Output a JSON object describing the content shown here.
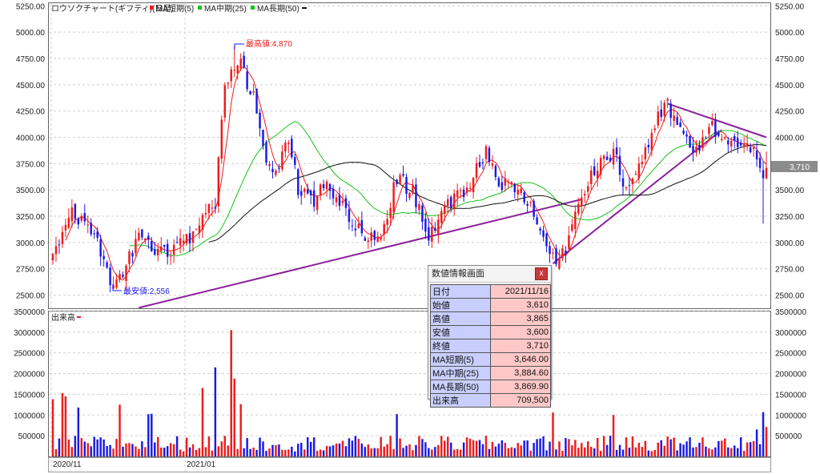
{
  "header": {
    "title": "ロウソクチャート(ギフティ)(日足)",
    "ma_short_label": "MA短期(5)",
    "ma_mid_label": "MA中期(25)",
    "ma_long_label": "MA長期(50)"
  },
  "colors": {
    "up": "#ee1c1c",
    "down": "#1a1ae6",
    "ma_short": "#ee1c1c",
    "ma_mid": "#18c418",
    "ma_long": "#111111",
    "trendline": "#8a1f9a",
    "price_tag_bg": "#888888"
  },
  "annotations": {
    "max_label": "最高値:4,870",
    "min_label": "最安値:2,556",
    "last_price": "3,710"
  },
  "volume_panel": {
    "label": "出来高"
  },
  "x_labels": [
    "2020/11",
    "2021/01"
  ],
  "info_window": {
    "title": "数値情報画面",
    "close_label": "x",
    "rows": [
      {
        "key": "日付",
        "value": "2021/11/16"
      },
      {
        "key": "始値",
        "value": "3,610"
      },
      {
        "key": "高値",
        "value": "3,865"
      },
      {
        "key": "安値",
        "value": "3,600"
      },
      {
        "key": "終値",
        "value": "3,710"
      },
      {
        "key": "MA短期(5)",
        "value": "3,646.00"
      },
      {
        "key": "MA中期(25)",
        "value": "3,884.60"
      },
      {
        "key": "MA長期(50)",
        "value": "3,869.90"
      },
      {
        "key": "出来高",
        "value": "709,500"
      }
    ]
  },
  "chart_data": {
    "type": "candlestick",
    "title": "ロウソクチャート(ギフティ)(日足)",
    "price_axis": {
      "ylim": [
        2375,
        5275
      ],
      "ticks": [
        2500,
        2750,
        3000,
        3250,
        3500,
        3750,
        4000,
        4250,
        4500,
        4750,
        5000,
        5250
      ],
      "tick_labels": [
        "2500.00",
        "2750.00",
        "3000.00",
        "3250.00",
        "3500.00",
        "3750.00",
        "4000.00",
        "4250.00",
        "4500.00",
        "4750.00",
        "5000.00",
        "5250.00"
      ]
    },
    "volume_axis": {
      "ylim": [
        0,
        3500000
      ],
      "ticks": [
        500000,
        1000000,
        1500000,
        2000000,
        2500000,
        3000000,
        3500000
      ],
      "tick_labels": [
        "500000",
        "1000000",
        "1500000",
        "2000000",
        "2500000",
        "3000000",
        "3500000"
      ]
    },
    "anchors": [
      {
        "i": 0,
        "close": 2880
      },
      {
        "i": 5,
        "close": 3280
      },
      {
        "i": 12,
        "close": 3150
      },
      {
        "i": 18,
        "close": 2640
      },
      {
        "i": 22,
        "close": 2700
      },
      {
        "i": 27,
        "close": 3100
      },
      {
        "i": 30,
        "close": 3000
      },
      {
        "i": 36,
        "close": 2870
      },
      {
        "i": 42,
        "close": 3020
      },
      {
        "i": 47,
        "close": 3250
      },
      {
        "i": 51,
        "close": 3380
      },
      {
        "i": 54,
        "close": 4450
      },
      {
        "i": 58,
        "close": 4750
      },
      {
        "i": 63,
        "close": 4380
      },
      {
        "i": 66,
        "close": 3880
      },
      {
        "i": 70,
        "close": 3650
      },
      {
        "i": 74,
        "close": 4000
      },
      {
        "i": 77,
        "close": 3520
      },
      {
        "i": 81,
        "close": 3380
      },
      {
        "i": 86,
        "close": 3550
      },
      {
        "i": 92,
        "close": 3300
      },
      {
        "i": 97,
        "close": 3100
      },
      {
        "i": 103,
        "close": 3020
      },
      {
        "i": 108,
        "close": 3620
      },
      {
        "i": 113,
        "close": 3480
      },
      {
        "i": 118,
        "close": 3080
      },
      {
        "i": 125,
        "close": 3380
      },
      {
        "i": 130,
        "close": 3520
      },
      {
        "i": 136,
        "close": 3880
      },
      {
        "i": 140,
        "close": 3560
      },
      {
        "i": 146,
        "close": 3550
      },
      {
        "i": 151,
        "close": 3250
      },
      {
        "i": 157,
        "close": 2830
      },
      {
        "i": 161,
        "close": 2960
      },
      {
        "i": 166,
        "close": 3480
      },
      {
        "i": 171,
        "close": 3750
      },
      {
        "i": 176,
        "close": 3850
      },
      {
        "i": 180,
        "close": 3500
      },
      {
        "i": 185,
        "close": 3800
      },
      {
        "i": 190,
        "close": 4180
      },
      {
        "i": 193,
        "close": 4300
      },
      {
        "i": 197,
        "close": 4050
      },
      {
        "i": 202,
        "close": 3850
      },
      {
        "i": 207,
        "close": 4100
      },
      {
        "i": 212,
        "close": 3950
      },
      {
        "i": 217,
        "close": 3900
      },
      {
        "i": 221,
        "close": 3850
      },
      {
        "i": 223,
        "close": 3610
      },
      {
        "i": 224,
        "close": 3710
      }
    ],
    "extremes": {
      "max": 4870,
      "min": 2556
    },
    "last_close": 3710,
    "volume_spikes": [
      {
        "i": 0,
        "v": 1380000
      },
      {
        "i": 3,
        "v": 1530000
      },
      {
        "i": 4,
        "v": 1450000
      },
      {
        "i": 8,
        "v": 1180000
      },
      {
        "i": 21,
        "v": 1250000
      },
      {
        "i": 30,
        "v": 1020000
      },
      {
        "i": 31,
        "v": 1030000
      },
      {
        "i": 47,
        "v": 1650000
      },
      {
        "i": 51,
        "v": 2150000
      },
      {
        "i": 56,
        "v": 3050000
      },
      {
        "i": 57,
        "v": 1880000
      },
      {
        "i": 59,
        "v": 1260000
      },
      {
        "i": 108,
        "v": 1020000
      },
      {
        "i": 157,
        "v": 1060000
      },
      {
        "i": 176,
        "v": 1000000
      },
      {
        "i": 221,
        "v": 650000
      },
      {
        "i": 223,
        "v": 1070000
      },
      {
        "i": 224,
        "v": 709500
      }
    ]
  }
}
